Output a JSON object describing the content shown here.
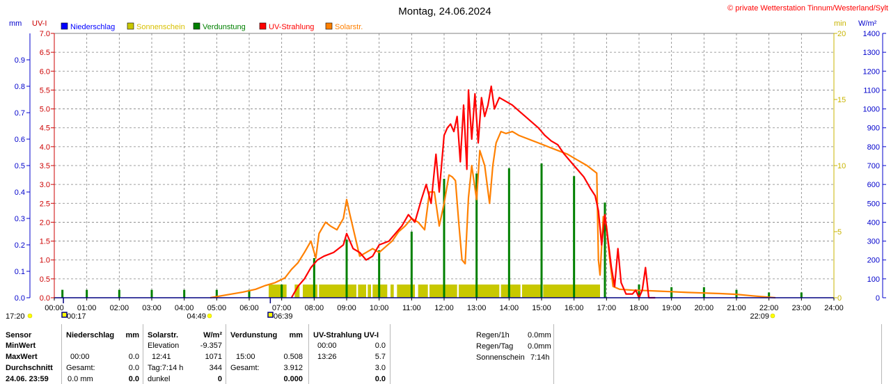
{
  "header": {
    "title": "Montag, 24.06.2024",
    "copyright": "© private Wetterstation Tinnum/Westerland/Sylt",
    "unit_mm": "mm",
    "unit_uvi": "UV-I",
    "unit_min": "min",
    "unit_wm2": "W/m²"
  },
  "colors": {
    "niederschlag": "#0000ff",
    "sonnenschein": "#c8c800",
    "sonnenschein_text": "#d8c000",
    "verdunstung": "#008000",
    "uv": "#ff0000",
    "solar": "#ff8000",
    "grid": "#808080"
  },
  "legend": [
    {
      "label": "Niederschlag",
      "color": "#0000ff"
    },
    {
      "label": "Sonnenschein",
      "color": "#c8c800",
      "text_color": "#d8c000"
    },
    {
      "label": "Verdunstung",
      "color": "#008000"
    },
    {
      "label": "UV-Strahlung",
      "color": "#ff0000"
    },
    {
      "label": "Solarstr.",
      "color": "#ff8000"
    }
  ],
  "chart_data": {
    "type": "line",
    "x_range_hours": [
      0,
      24
    ],
    "x_ticks": [
      "00:00",
      "01:00",
      "02:00",
      "03:00",
      "04:00",
      "05:00",
      "06:00",
      "07:00",
      "08:00",
      "09:00",
      "10:00",
      "11:00",
      "12:00",
      "13:00",
      "14:00",
      "15:00",
      "16:00",
      "17:00",
      "18:00",
      "19:00",
      "20:00",
      "21:00",
      "22:00",
      "23:00",
      "24:00"
    ],
    "axes": {
      "mm": {
        "range": [
          0,
          1.0
        ],
        "ticks": [
          "0.0",
          "0.1",
          "0.2",
          "0.3",
          "0.4",
          "0.5",
          "0.6",
          "0.7",
          "0.8",
          "0.9"
        ]
      },
      "uvi": {
        "range": [
          0,
          7.0
        ],
        "ticks": [
          "0.0",
          "0.5",
          "1.0",
          "1.5",
          "2.0",
          "2.5",
          "3.0",
          "3.5",
          "4.0",
          "4.5",
          "5.0",
          "5.5",
          "6.0",
          "6.5",
          "7.0"
        ]
      },
      "min": {
        "range": [
          0,
          20
        ],
        "ticks": [
          "0",
          "5",
          "10",
          "15",
          "20"
        ]
      },
      "wm2": {
        "range": [
          0,
          1400
        ],
        "ticks": [
          "0",
          "100",
          "200",
          "300",
          "400",
          "500",
          "600",
          "700",
          "800",
          "900",
          "1000",
          "1100",
          "1200",
          "1300",
          "1400"
        ]
      }
    },
    "grid": true,
    "astro_markers": [
      {
        "time": "17:20",
        "hour": 0.0,
        "symbol": "moon-rise"
      },
      {
        "time": "00:17",
        "hour": 0.28,
        "symbol": "moon-set"
      },
      {
        "time": "04:49",
        "hour": 4.82,
        "symbol": "sunrise"
      },
      {
        "time": "06:39",
        "hour": 6.65,
        "symbol": "moon-phase"
      },
      {
        "time": "22:09",
        "hour": 22.15,
        "symbol": "sunset"
      }
    ],
    "series": [
      {
        "name": "Solarstr.",
        "axis": "wm2",
        "color": "#ff8000",
        "points": [
          [
            4.8,
            0
          ],
          [
            5.3,
            15
          ],
          [
            5.8,
            30
          ],
          [
            6.2,
            45
          ],
          [
            6.5,
            65
          ],
          [
            6.8,
            80
          ],
          [
            7.1,
            105
          ],
          [
            7.3,
            150
          ],
          [
            7.5,
            185
          ],
          [
            7.7,
            240
          ],
          [
            7.9,
            300
          ],
          [
            8.05,
            210
          ],
          [
            8.15,
            340
          ],
          [
            8.35,
            400
          ],
          [
            8.5,
            380
          ],
          [
            8.7,
            360
          ],
          [
            8.9,
            420
          ],
          [
            9.0,
            520
          ],
          [
            9.1,
            440
          ],
          [
            9.25,
            330
          ],
          [
            9.4,
            220
          ],
          [
            9.6,
            240
          ],
          [
            9.8,
            260
          ],
          [
            10.0,
            240
          ],
          [
            10.2,
            270
          ],
          [
            10.4,
            300
          ],
          [
            10.6,
            350
          ],
          [
            10.8,
            380
          ],
          [
            11.0,
            420
          ],
          [
            11.2,
            400
          ],
          [
            11.4,
            360
          ],
          [
            11.55,
            560
          ],
          [
            11.7,
            560
          ],
          [
            11.85,
            380
          ],
          [
            12.0,
            500
          ],
          [
            12.15,
            650
          ],
          [
            12.25,
            640
          ],
          [
            12.35,
            620
          ],
          [
            12.45,
            400
          ],
          [
            12.55,
            200
          ],
          [
            12.65,
            180
          ],
          [
            12.75,
            530
          ],
          [
            12.85,
            700
          ],
          [
            13.0,
            520
          ],
          [
            13.1,
            780
          ],
          [
            13.25,
            700
          ],
          [
            13.4,
            500
          ],
          [
            13.5,
            700
          ],
          [
            13.6,
            820
          ],
          [
            13.75,
            880
          ],
          [
            13.9,
            870
          ],
          [
            14.1,
            880
          ],
          [
            14.3,
            860
          ],
          [
            14.6,
            840
          ],
          [
            14.9,
            820
          ],
          [
            15.2,
            800
          ],
          [
            15.5,
            780
          ],
          [
            15.8,
            760
          ],
          [
            16.1,
            730
          ],
          [
            16.4,
            700
          ],
          [
            16.7,
            660
          ],
          [
            16.75,
            200
          ],
          [
            16.8,
            120
          ],
          [
            16.9,
            430
          ],
          [
            17.0,
            380
          ],
          [
            17.1,
            200
          ],
          [
            17.2,
            60
          ],
          [
            17.4,
            45
          ],
          [
            17.8,
            40
          ],
          [
            18.2,
            38
          ],
          [
            18.6,
            35
          ],
          [
            19.0,
            32
          ],
          [
            19.5,
            28
          ],
          [
            20.0,
            25
          ],
          [
            20.5,
            22
          ],
          [
            21.0,
            18
          ],
          [
            21.5,
            10
          ],
          [
            22.0,
            3
          ],
          [
            22.2,
            0
          ]
        ]
      },
      {
        "name": "UV-Strahlung",
        "axis": "uvi",
        "color": "#ff0000",
        "points": [
          [
            7.3,
            0.0
          ],
          [
            7.5,
            0.3
          ],
          [
            7.7,
            0.5
          ],
          [
            7.9,
            0.8
          ],
          [
            8.1,
            1.0
          ],
          [
            8.3,
            1.1
          ],
          [
            8.6,
            1.2
          ],
          [
            8.9,
            1.4
          ],
          [
            9.0,
            1.7
          ],
          [
            9.2,
            1.3
          ],
          [
            9.4,
            1.2
          ],
          [
            9.6,
            1.0
          ],
          [
            9.8,
            1.1
          ],
          [
            10.0,
            1.4
          ],
          [
            10.3,
            1.5
          ],
          [
            10.5,
            1.7
          ],
          [
            10.7,
            1.9
          ],
          [
            10.9,
            2.2
          ],
          [
            11.1,
            2.0
          ],
          [
            11.3,
            2.6
          ],
          [
            11.45,
            3.0
          ],
          [
            11.6,
            2.5
          ],
          [
            11.75,
            3.8
          ],
          [
            11.85,
            2.8
          ],
          [
            12.0,
            4.3
          ],
          [
            12.1,
            4.5
          ],
          [
            12.2,
            4.6
          ],
          [
            12.3,
            4.4
          ],
          [
            12.4,
            4.8
          ],
          [
            12.5,
            3.6
          ],
          [
            12.6,
            5.1
          ],
          [
            12.7,
            3.4
          ],
          [
            12.75,
            5.5
          ],
          [
            12.85,
            4.2
          ],
          [
            12.95,
            5.4
          ],
          [
            13.05,
            4.1
          ],
          [
            13.15,
            5.3
          ],
          [
            13.25,
            4.8
          ],
          [
            13.35,
            5.1
          ],
          [
            13.45,
            5.6
          ],
          [
            13.55,
            5.0
          ],
          [
            13.7,
            5.3
          ],
          [
            13.9,
            5.2
          ],
          [
            14.1,
            5.1
          ],
          [
            14.3,
            4.95
          ],
          [
            14.5,
            4.8
          ],
          [
            14.7,
            4.65
          ],
          [
            14.9,
            4.5
          ],
          [
            15.1,
            4.3
          ],
          [
            15.3,
            4.15
          ],
          [
            15.5,
            4.05
          ],
          [
            15.7,
            3.8
          ],
          [
            15.9,
            3.6
          ],
          [
            16.1,
            3.4
          ],
          [
            16.3,
            3.2
          ],
          [
            16.5,
            2.9
          ],
          [
            16.65,
            2.7
          ],
          [
            16.75,
            2.3
          ],
          [
            16.85,
            1.4
          ],
          [
            16.95,
            2.2
          ],
          [
            17.05,
            1.5
          ],
          [
            17.15,
            0.8
          ],
          [
            17.25,
            0.3
          ],
          [
            17.35,
            1.3
          ],
          [
            17.45,
            0.4
          ],
          [
            17.6,
            0.1
          ],
          [
            17.8,
            0.1
          ],
          [
            17.9,
            0.2
          ],
          [
            18.0,
            0.0
          ],
          [
            18.1,
            0.2
          ],
          [
            18.2,
            0.8
          ],
          [
            18.3,
            0.0
          ],
          [
            18.5,
            0.0
          ]
        ]
      },
      {
        "name": "Sonnenschein",
        "axis": "min",
        "color": "#c8c800",
        "blocks": [
          [
            6.6,
            7.15
          ],
          [
            7.4,
            7.55
          ],
          [
            7.65,
            8.1
          ],
          [
            8.15,
            9.3
          ],
          [
            9.35,
            9.6
          ],
          [
            9.65,
            9.75
          ],
          [
            9.8,
            10.25
          ],
          [
            10.35,
            10.45
          ],
          [
            10.55,
            11.1
          ],
          [
            11.2,
            11.5
          ],
          [
            11.55,
            12.4
          ],
          [
            12.45,
            13.7
          ],
          [
            13.75,
            14.35
          ],
          [
            14.4,
            15.0
          ],
          [
            15.05,
            16.8
          ]
        ],
        "value_per_block": 1.0
      },
      {
        "name": "Verdunstung",
        "axis": "wm2",
        "color": "#008000",
        "bars": [
          [
            0.25,
            0.03
          ],
          [
            1.0,
            0.03
          ],
          [
            2.0,
            0.03
          ],
          [
            3.0,
            0.03
          ],
          [
            4.0,
            0.03
          ],
          [
            5.0,
            0.03
          ],
          [
            6.0,
            0.03
          ],
          [
            7.0,
            0.05
          ],
          [
            8.0,
            0.15
          ],
          [
            9.0,
            0.22
          ],
          [
            10.0,
            0.18
          ],
          [
            11.0,
            0.25
          ],
          [
            12.0,
            0.45
          ],
          [
            13.0,
            0.47
          ],
          [
            14.0,
            0.49
          ],
          [
            15.0,
            0.508
          ],
          [
            16.0,
            0.46
          ],
          [
            16.95,
            0.36
          ],
          [
            18.0,
            0.05
          ],
          [
            19.0,
            0.04
          ],
          [
            20.0,
            0.04
          ],
          [
            21.0,
            0.03
          ],
          [
            22.0,
            0.02
          ],
          [
            23.0,
            0.02
          ]
        ]
      }
    ]
  },
  "stats": {
    "sensor_col": {
      "header": "Sensor",
      "min": "MinWert",
      "max": "MaxWert",
      "avg": "Durchschnitt",
      "timestamp": "24.06. 23:59"
    },
    "niederschlag": {
      "header": "Niederschlag",
      "unit": "mm",
      "max_time": "00:00",
      "max_val": "0.0",
      "total_label": "Gesamt:",
      "total_val": "0.0",
      "current": "0.0 mm",
      "current_bold": "0.0"
    },
    "solar": {
      "header": "Solarstr.",
      "unit": "W/m²",
      "elev_label": "Elevation",
      "elev_val": "-9.357",
      "max_time": "12:41",
      "max_val": "1071",
      "day_label": "Tag:7:14 h",
      "day_val": "344",
      "state": "dunkel",
      "state_val": "0"
    },
    "verdunstung": {
      "header": "Verdunstung",
      "unit": "mm",
      "max_time": "15:00",
      "max_val": "0.508",
      "total_label": "Gesamt:",
      "total_val": "3.912",
      "current": "0.000"
    },
    "uv": {
      "header": "UV-Strahlung UV-I",
      "min_time": "00:00",
      "min_val": "0.0",
      "max_time": "13:26",
      "max_val": "5.7",
      "avg_val": "3.0",
      "current": "0.0"
    },
    "extra": {
      "rain1h_label": "Regen/1h",
      "rain1h_val": "0.0mm",
      "rainday_label": "Regen/Tag",
      "rainday_val": "0.0mm",
      "sun_label": "Sonnenschein",
      "sun_val": "7:14h"
    }
  }
}
